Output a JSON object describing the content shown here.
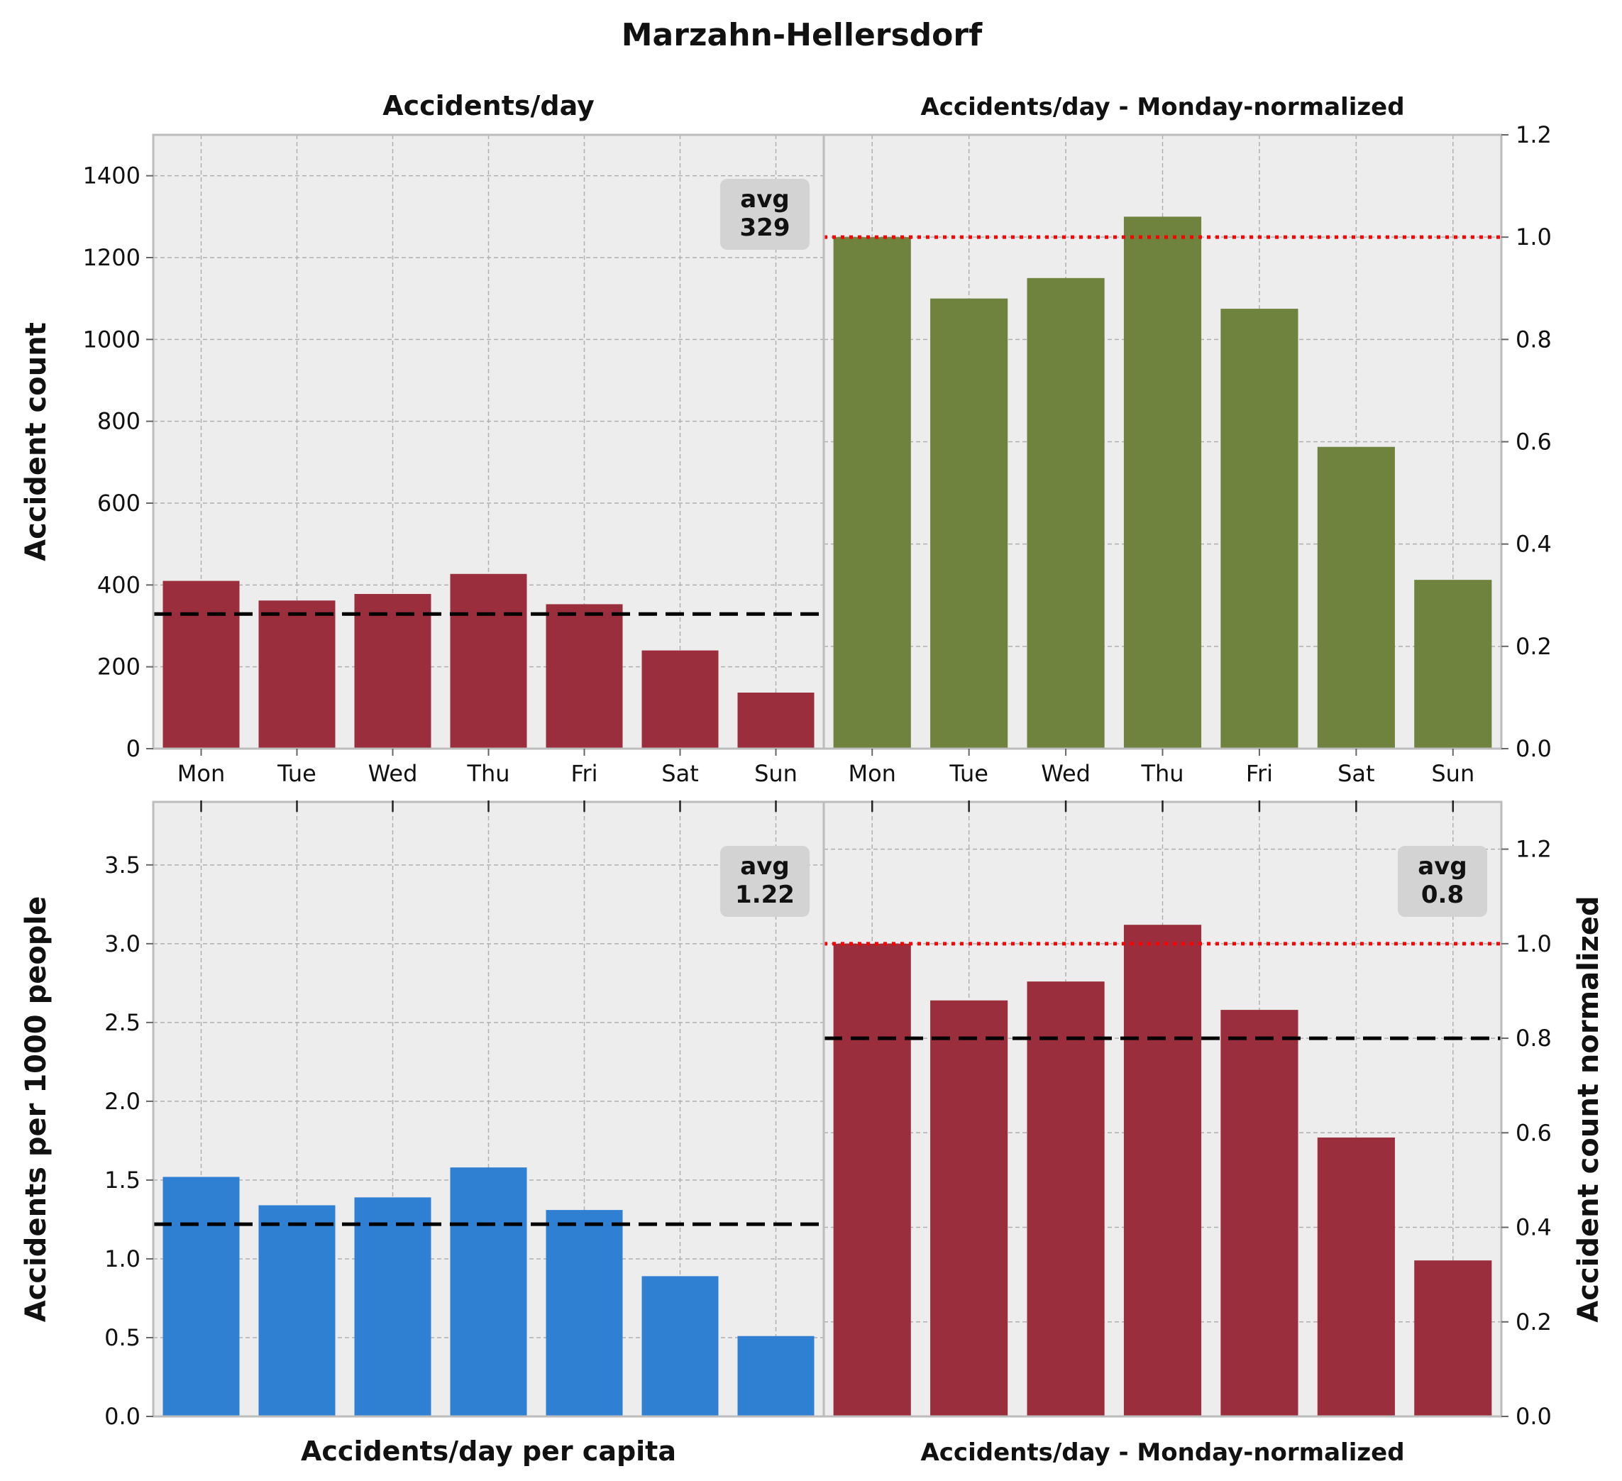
{
  "figure": {
    "title": "Marzahn-Hellersdorf"
  },
  "colors": {
    "panel_bg": "#ededed",
    "grid": "#b0b0b0",
    "spine": "#bcbcbc",
    "red_bar": "#9a2e3c",
    "green_bar": "#6f823e",
    "blue_bar": "#2f7fd3",
    "avg_line": "#000000",
    "reference_line": "#ff0000",
    "avg_box": "#d3d3d3"
  },
  "chart_data": [
    {
      "id": "top-left",
      "type": "bar",
      "title": "Accidents/day",
      "xlabel": "",
      "ylabel": "Accident count",
      "categories": [
        "Mon",
        "Tue",
        "Wed",
        "Thu",
        "Fri",
        "Sat",
        "Sun"
      ],
      "values": [
        410,
        362,
        378,
        427,
        353,
        240,
        137
      ],
      "ylim": [
        0,
        1500
      ],
      "yticks": [
        0,
        200,
        400,
        600,
        800,
        1000,
        1200,
        1400
      ],
      "avg_value": 329,
      "avg_label": "avg\n329",
      "avg_box_position": "top-right",
      "bar_color": "red_bar",
      "grid": true
    },
    {
      "id": "top-right",
      "type": "bar",
      "title": "Accidents/day - Monday-normalized",
      "xlabel": "",
      "ylabel": "",
      "categories": [
        "Mon",
        "Tue",
        "Wed",
        "Thu",
        "Fri",
        "Sat",
        "Sun"
      ],
      "values": [
        1.0,
        0.88,
        0.92,
        1.04,
        0.86,
        0.59,
        0.33
      ],
      "ylim": [
        0,
        1.2
      ],
      "yticks": [
        0.0,
        0.2,
        0.4,
        0.6,
        0.8,
        1.0,
        1.2
      ],
      "reference_value": 1.0,
      "bar_color": "green_bar",
      "grid": true
    },
    {
      "id": "bottom-left",
      "type": "bar",
      "title": "",
      "xlabel": "Accidents/day per capita",
      "ylabel": "Accidents per 1000 people",
      "categories": [
        "Mon",
        "Tue",
        "Wed",
        "Thu",
        "Fri",
        "Sat",
        "Sun"
      ],
      "values": [
        1.52,
        1.34,
        1.39,
        1.58,
        1.31,
        0.89,
        0.51
      ],
      "ylim": [
        0,
        3.9
      ],
      "yticks": [
        0.0,
        0.5,
        1.0,
        1.5,
        2.0,
        2.5,
        3.0,
        3.5
      ],
      "avg_value": 1.22,
      "avg_label": "avg\n1.22",
      "avg_box_position": "top-right",
      "bar_color": "blue_bar",
      "grid": true
    },
    {
      "id": "bottom-right",
      "type": "bar",
      "title": "",
      "xlabel": "Accidents/day - Monday-normalized",
      "ylabel": "Accident count normalized",
      "categories": [
        "Mon",
        "Tue",
        "Wed",
        "Thu",
        "Fri",
        "Sat",
        "Sun"
      ],
      "values": [
        1.0,
        0.88,
        0.92,
        1.04,
        0.86,
        0.59,
        0.33
      ],
      "ylim": [
        0,
        1.3
      ],
      "yticks": [
        0.0,
        0.2,
        0.4,
        0.6,
        0.8,
        1.0,
        1.2
      ],
      "reference_value": 1.0,
      "avg_value": 0.8,
      "avg_label": "avg\n0.8",
      "avg_box_position": "top-right",
      "bar_color": "red_bar",
      "grid": true
    }
  ]
}
